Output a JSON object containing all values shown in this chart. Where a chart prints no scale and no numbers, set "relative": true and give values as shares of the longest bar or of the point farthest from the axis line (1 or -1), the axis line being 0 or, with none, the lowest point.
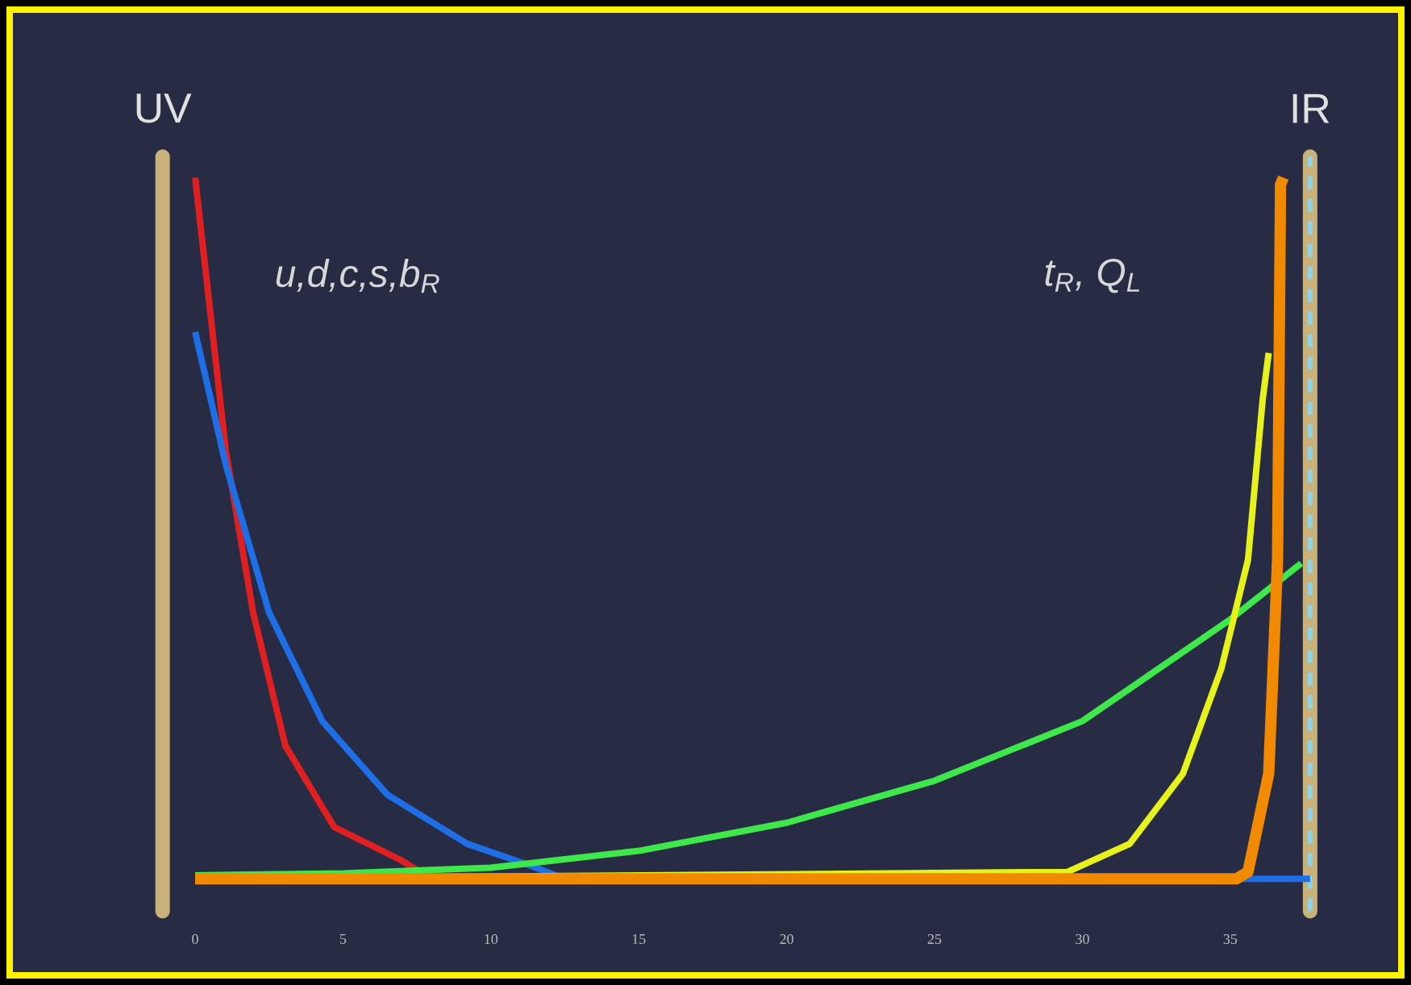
{
  "chart_data": {
    "type": "line",
    "relative": true,
    "xlim": [
      -1.1,
      37.7
    ],
    "xticks": [
      0,
      5,
      10,
      15,
      20,
      25,
      30,
      35
    ],
    "tick_labels": "x",
    "series": [
      {
        "color": "#e02020",
        "x": [
          0,
          1.04,
          1.96,
          3.05,
          4.7,
          6.9,
          8,
          12
        ],
        "values": [
          1.0,
          0.61,
          0.38,
          0.19,
          0.074,
          0.028,
          0,
          0
        ]
      },
      {
        "color": "#1e6fe6",
        "x": [
          0,
          1.04,
          2.5,
          4.3,
          6.5,
          9.2,
          11.4,
          12.5,
          37.7
        ],
        "values": [
          0.78,
          0.59,
          0.38,
          0.225,
          0.12,
          0.05,
          0.018,
          0,
          0
        ]
      },
      {
        "color": "#3ee84a",
        "x": [
          0,
          5,
          10,
          15,
          20,
          25,
          30,
          35,
          37.4
        ],
        "values": [
          0.005,
          0.008,
          0.016,
          0.04,
          0.08,
          0.14,
          0.225,
          0.37,
          0.45
        ]
      },
      {
        "color": "#e6f21a",
        "x": [
          0,
          29.5,
          31.6,
          33.4,
          34.7,
          35.6,
          36.1,
          36.3
        ],
        "values": [
          0,
          0.01,
          0.05,
          0.15,
          0.3,
          0.455,
          0.685,
          0.75
        ]
      },
      {
        "color": "#f28a00",
        "x": [
          0,
          35.2,
          35.6,
          36.3,
          36.6,
          36.7,
          36.8
        ],
        "values": [
          0,
          0,
          0.01,
          0.15,
          0.455,
          0.99,
          1.0
        ]
      }
    ],
    "ref_lines": [
      {
        "axis": "x",
        "value": -1.1,
        "label": "UV",
        "color": "#c8b27a"
      },
      {
        "axis": "x",
        "value": 37.7,
        "label": "IR",
        "color": "#c8b27a"
      },
      {
        "axis": "x",
        "value": 37.7,
        "color": "#8fd3e8",
        "line_style": "dashed"
      }
    ],
    "annotations": [
      "u,d,c,s,b$_{R}$",
      "t$_{R}$, Q$_{L}$"
    ]
  }
}
